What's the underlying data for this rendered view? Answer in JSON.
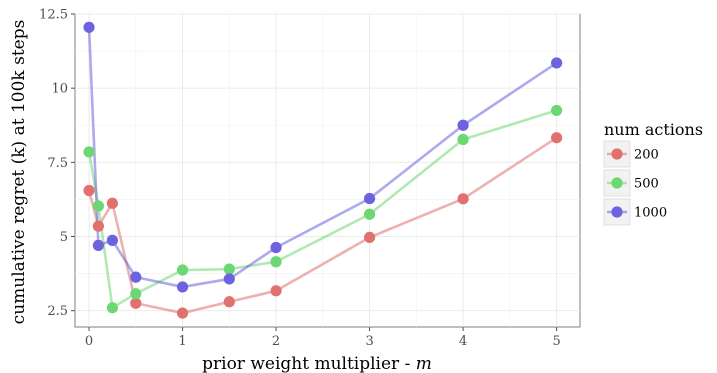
{
  "chart_data": {
    "type": "line",
    "xlabel": "prior weight multiplier - ",
    "xlabel_var": "m",
    "ylabel": "cumulative regret (k) at 100k steps",
    "xlim": [
      -0.15,
      5.25
    ],
    "ylim": [
      1.95,
      12.5
    ],
    "x_ticks": [
      0,
      1,
      2,
      3,
      4,
      5
    ],
    "x_tick_labels": [
      "0",
      "1",
      "2",
      "3",
      "4",
      "5"
    ],
    "y_ticks": [
      2.5,
      5,
      7.5,
      10,
      12.5
    ],
    "y_tick_labels": [
      "2.5",
      "5",
      "7.5",
      "10",
      "12.5"
    ],
    "grid": true,
    "legend": {
      "title": "num actions",
      "placement": "right"
    },
    "x": [
      0,
      0.1,
      0.25,
      0.5,
      1,
      1.5,
      2,
      3,
      4,
      5
    ],
    "series": [
      {
        "name": "200",
        "color": "#E0716E",
        "values": [
          6.55,
          5.35,
          6.12,
          2.75,
          2.42,
          2.8,
          3.17,
          4.97,
          6.27,
          8.33
        ]
      },
      {
        "name": "500",
        "color": "#6DD873",
        "values": [
          7.85,
          6.03,
          2.6,
          3.07,
          3.87,
          3.9,
          4.15,
          5.75,
          8.27,
          9.25
        ]
      },
      {
        "name": "1000",
        "color": "#6E63DF",
        "values": [
          12.05,
          4.7,
          4.87,
          3.63,
          3.3,
          3.57,
          4.63,
          6.28,
          8.75,
          10.85
        ]
      }
    ]
  }
}
